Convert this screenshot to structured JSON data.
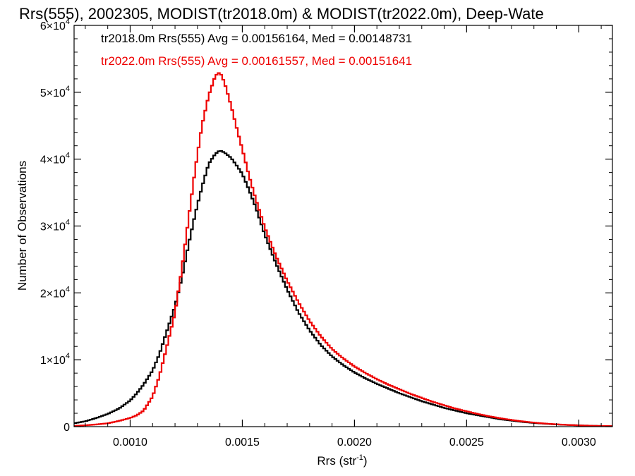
{
  "chart_data": {
    "type": "histogram",
    "title": "Rrs(555), 2002305, MODIST(tr2018.0m) & MODIST(tr2022.0m), Deep-Wate",
    "xlabel_main": "Rrs (str",
    "xlabel_exp": "-1",
    "xlabel_close": ")",
    "ylabel": "Number of Observations",
    "xlim": [
      0.00075,
      0.00315
    ],
    "ylim": [
      0,
      60000
    ],
    "x_ticks": [
      {
        "value": 0.001,
        "label": "0.0010"
      },
      {
        "value": 0.0015,
        "label": "0.0015"
      },
      {
        "value": 0.002,
        "label": "0.0020"
      },
      {
        "value": 0.0025,
        "label": "0.0025"
      },
      {
        "value": 0.003,
        "label": "0.0030"
      }
    ],
    "y_ticks": [
      {
        "value": 0,
        "mant": "0",
        "exp": ""
      },
      {
        "value": 10000,
        "mant": "1×10",
        "exp": "4"
      },
      {
        "value": 20000,
        "mant": "2×10",
        "exp": "4"
      },
      {
        "value": 30000,
        "mant": "3×10",
        "exp": "4"
      },
      {
        "value": 40000,
        "mant": "4×10",
        "exp": "4"
      },
      {
        "value": 50000,
        "mant": "5×10",
        "exp": "4"
      },
      {
        "value": 60000,
        "mant": "6×10",
        "exp": "4"
      }
    ],
    "annotations": [
      {
        "text": "tr2018.0m Rrs(555) Avg = 0.00156164, Med = 0.00148731",
        "color": "#000000"
      },
      {
        "text": "tr2022.0m Rrs(555) Avg = 0.00161557, Med = 0.00151641",
        "color": "#ee0000"
      }
    ],
    "bin_width": 1e-05,
    "series": [
      {
        "color": "#000000",
        "points": [
          [
            0.00075,
            500
          ],
          [
            0.0008,
            800
          ],
          [
            0.00085,
            1300
          ],
          [
            0.0009,
            1900
          ],
          [
            0.00095,
            2700
          ],
          [
            0.001,
            3900
          ],
          [
            0.00103,
            5000
          ],
          [
            0.00106,
            6300
          ],
          [
            0.0011,
            8400
          ],
          [
            0.00113,
            10800
          ],
          [
            0.00116,
            13900
          ],
          [
            0.0012,
            18000
          ],
          [
            0.00123,
            22200
          ],
          [
            0.00126,
            27200
          ],
          [
            0.00129,
            31800
          ],
          [
            0.00132,
            35800
          ],
          [
            0.00135,
            39300
          ],
          [
            0.00138,
            40800
          ],
          [
            0.0014,
            41300
          ],
          [
            0.00142,
            41000
          ],
          [
            0.00145,
            40200
          ],
          [
            0.00148,
            38800
          ],
          [
            0.0015,
            37800
          ],
          [
            0.00153,
            35400
          ],
          [
            0.00156,
            32800
          ],
          [
            0.0016,
            28700
          ],
          [
            0.00165,
            24400
          ],
          [
            0.0017,
            20500
          ],
          [
            0.00175,
            17100
          ],
          [
            0.0018,
            14400
          ],
          [
            0.00185,
            12200
          ],
          [
            0.0019,
            10500
          ],
          [
            0.00195,
            9200
          ],
          [
            0.002,
            8100
          ],
          [
            0.00205,
            7200
          ],
          [
            0.0021,
            6400
          ],
          [
            0.00215,
            5700
          ],
          [
            0.0022,
            5000
          ],
          [
            0.00225,
            4400
          ],
          [
            0.0023,
            3800
          ],
          [
            0.00235,
            3300
          ],
          [
            0.0024,
            2800
          ],
          [
            0.00245,
            2400
          ],
          [
            0.0025,
            2000
          ],
          [
            0.00255,
            1700
          ],
          [
            0.0026,
            1400
          ],
          [
            0.00265,
            1100
          ],
          [
            0.0027,
            900
          ],
          [
            0.00275,
            700
          ],
          [
            0.0028,
            550
          ],
          [
            0.00285,
            430
          ],
          [
            0.0029,
            330
          ],
          [
            0.00295,
            250
          ],
          [
            0.003,
            190
          ],
          [
            0.00305,
            140
          ],
          [
            0.0031,
            100
          ],
          [
            0.00315,
            80
          ]
        ]
      },
      {
        "color": "#ee0000",
        "points": [
          [
            0.00075,
            100
          ],
          [
            0.0008,
            200
          ],
          [
            0.00085,
            330
          ],
          [
            0.0009,
            500
          ],
          [
            0.00095,
            850
          ],
          [
            0.001,
            1300
          ],
          [
            0.00103,
            1700
          ],
          [
            0.00106,
            2400
          ],
          [
            0.0011,
            4500
          ],
          [
            0.00113,
            7500
          ],
          [
            0.00116,
            11500
          ],
          [
            0.0012,
            17000
          ],
          [
            0.00123,
            23500
          ],
          [
            0.00126,
            31000
          ],
          [
            0.00129,
            38500
          ],
          [
            0.00132,
            45000
          ],
          [
            0.00135,
            49500
          ],
          [
            0.00138,
            52500
          ],
          [
            0.0014,
            53000
          ],
          [
            0.00142,
            51500
          ],
          [
            0.00145,
            48000
          ],
          [
            0.00148,
            44000
          ],
          [
            0.0015,
            41500
          ],
          [
            0.00153,
            37500
          ],
          [
            0.00156,
            34000
          ],
          [
            0.0016,
            29800
          ],
          [
            0.00165,
            25500
          ],
          [
            0.0017,
            21800
          ],
          [
            0.00175,
            18600
          ],
          [
            0.0018,
            15800
          ],
          [
            0.00185,
            13500
          ],
          [
            0.0019,
            11600
          ],
          [
            0.00195,
            10200
          ],
          [
            0.002,
            9000
          ],
          [
            0.00205,
            8000
          ],
          [
            0.0021,
            7100
          ],
          [
            0.00215,
            6300
          ],
          [
            0.0022,
            5600
          ],
          [
            0.00225,
            4900
          ],
          [
            0.0023,
            4300
          ],
          [
            0.00235,
            3700
          ],
          [
            0.0024,
            3200
          ],
          [
            0.00245,
            2700
          ],
          [
            0.0025,
            2300
          ],
          [
            0.00255,
            1900
          ],
          [
            0.0026,
            1550
          ],
          [
            0.00265,
            1250
          ],
          [
            0.0027,
            1000
          ],
          [
            0.00275,
            780
          ],
          [
            0.0028,
            600
          ],
          [
            0.00285,
            460
          ],
          [
            0.0029,
            350
          ],
          [
            0.00295,
            260
          ],
          [
            0.003,
            190
          ],
          [
            0.00305,
            140
          ],
          [
            0.0031,
            100
          ],
          [
            0.00315,
            80
          ]
        ]
      }
    ]
  }
}
